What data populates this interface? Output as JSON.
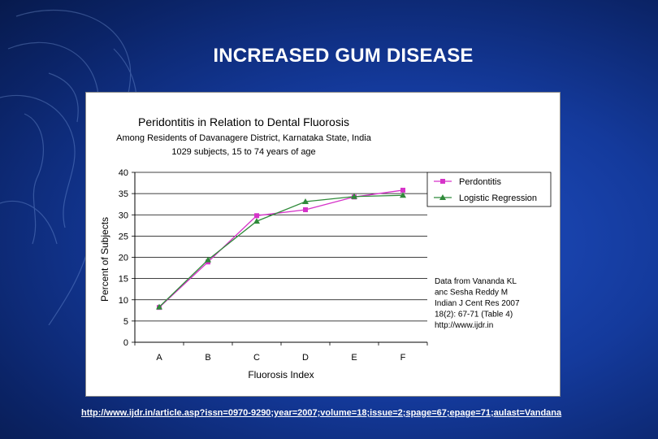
{
  "slide": {
    "title": "INCREASED GUM DISEASE",
    "footer_url": "http://www.ijdr.in/article.asp?issn=0970-9290;year=2007;volume=18;issue=2;spage=67;epage=71;aulast=Vandana"
  },
  "colors": {
    "background": "#143a9c",
    "series_periodontitis": "#d633c9",
    "series_logistic": "#2f8a3a"
  },
  "chart_data": {
    "type": "line",
    "title": "Peridontitis in Relation to Dental Fluorosis",
    "subtitle_1": "Among Residents of Davanagere District, Karnataka State, India",
    "subtitle_2": "1029 subjects, 15 to 74 years of age",
    "xlabel": "Fluorosis Index",
    "ylabel": "Percent of Subjects",
    "categories": [
      "A",
      "B",
      "C",
      "D",
      "E",
      "F"
    ],
    "ylim": [
      0,
      40
    ],
    "yticks": [
      "0",
      "5",
      "10",
      "15",
      "20",
      "25",
      "30",
      "35",
      "40"
    ],
    "grid": true,
    "legend_position": "right",
    "series": [
      {
        "name": "Perdontitis",
        "marker": "square",
        "color": "#d633c9",
        "values": [
          8.2,
          18.9,
          29.8,
          31.2,
          34.2,
          35.8
        ]
      },
      {
        "name": "Logistic Regression",
        "marker": "triangle",
        "color": "#2f8a3a",
        "values": [
          8.3,
          19.4,
          28.5,
          33.1,
          34.3,
          34.6
        ]
      }
    ],
    "note_lines": [
      "Data from Vananda KL",
      "anc Sesha Reddy M",
      "Indian J Cent Res 2007",
      "18(2): 67-71 (Table 4)",
      "http://www.ijdr.in"
    ]
  }
}
